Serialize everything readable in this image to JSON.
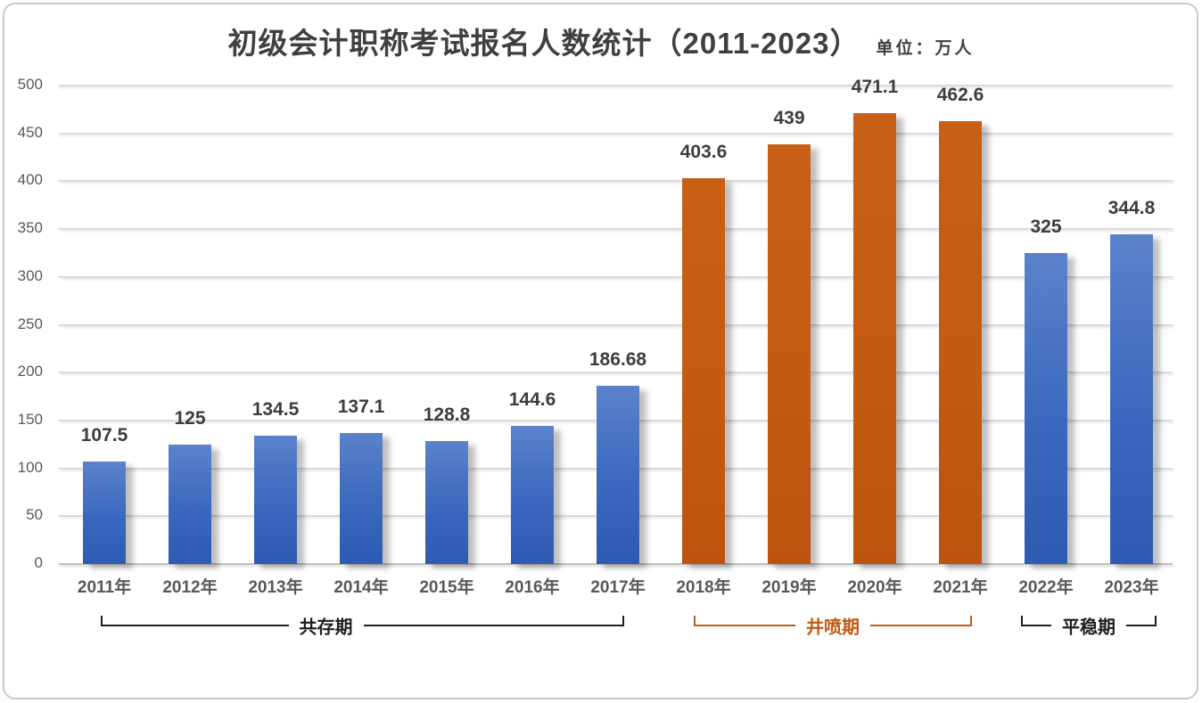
{
  "header": {
    "title": "初级会计职称考试报名人数统计（2011-2023）",
    "unit_label": "单位：万人"
  },
  "chart_data": {
    "type": "bar",
    "title": "初级会计职称考试报名人数统计（2011-2023）",
    "unit": "万人",
    "categories": [
      "2011年",
      "2012年",
      "2013年",
      "2014年",
      "2015年",
      "2016年",
      "2017年",
      "2018年",
      "2019年",
      "2020年",
      "2021年",
      "2022年",
      "2023年"
    ],
    "values": [
      107.5,
      125,
      134.5,
      137.1,
      128.8,
      144.6,
      186.68,
      403.6,
      439,
      471.1,
      462.6,
      325,
      344.8
    ],
    "value_labels": [
      "107.5",
      "125",
      "134.5",
      "137.1",
      "128.8",
      "144.6",
      "186.68",
      "403.6",
      "439",
      "471.1",
      "462.6",
      "325",
      "344.8"
    ],
    "bar_colors": [
      "blue",
      "blue",
      "blue",
      "blue",
      "blue",
      "blue",
      "blue",
      "orange",
      "orange",
      "orange",
      "orange",
      "blue",
      "blue"
    ],
    "palette": {
      "blue": "#3a68be",
      "orange": "#c55a11"
    },
    "ylim": [
      0,
      500
    ],
    "ytick_step": 50,
    "grid": true,
    "legend": false,
    "xlabel": "",
    "ylabel": "",
    "periods": [
      {
        "label": "共存期",
        "from": 0,
        "to": 6,
        "color": "#1f1f1f"
      },
      {
        "label": "井喷期",
        "from": 7,
        "to": 10,
        "color": "#c05a15"
      },
      {
        "label": "平稳期",
        "from": 11,
        "to": 12,
        "color": "#1f1f1f"
      }
    ]
  }
}
